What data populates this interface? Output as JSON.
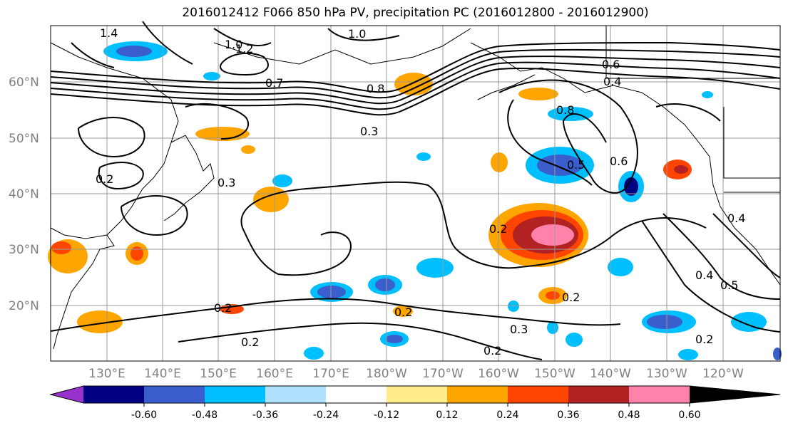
{
  "title": "2016012412 F066 850 hPa PV, precipitation PC (2016012800 - 2016012900)",
  "latitude_labels": [
    "60°N",
    "50°N",
    "40°N",
    "30°N",
    "20°N"
  ],
  "longitude_labels": [
    "130°E",
    "140°E",
    "150°E",
    "160°E",
    "170°E",
    "180°W",
    "170°W",
    "160°W",
    "150°W",
    "140°W",
    "130°W",
    "120°W"
  ],
  "colorbar": {
    "colors": [
      "#9932cc",
      "#000080",
      "#3a5fcd",
      "#00bfff",
      "#b0e2ff",
      "#ffffff",
      "#ffec8b",
      "#ffa500",
      "#ff4500",
      "#b22222",
      "#ff82ab"
    ],
    "tick_labels": [
      "-0.60",
      "-0.48",
      "-0.36",
      "-0.24",
      "-0.12",
      "0.12",
      "0.24",
      "0.36",
      "0.48",
      "0.60"
    ]
  },
  "contour_labels": [
    "1.4",
    "1.2",
    "1.0",
    "1.0",
    "0.8",
    "0.7",
    "0.6",
    "0.4",
    "0.3",
    "0.2",
    "0.2",
    "0.5",
    "0.6",
    "0.8",
    "0.3",
    "0.2",
    "0.4",
    "0.5",
    "0.2",
    "0.2",
    "0.3",
    "0.2",
    "0.2",
    "0.2",
    "0.4"
  ]
}
